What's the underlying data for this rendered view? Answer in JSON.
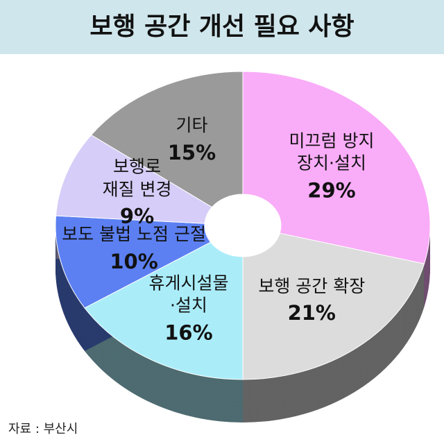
{
  "chart_data": {
    "type": "pie",
    "title": "보행 공간 개선 필요 사항",
    "categories": [
      "미끄럼 방지\n장치·설치",
      "보행 공간 확장",
      "휴게시설물\n·설치",
      "보도 불법 노점 근절",
      "보행로\n재질 변경",
      "기타"
    ],
    "values": [
      29,
      21,
      16,
      10,
      9,
      15
    ],
    "value_labels": [
      "29%",
      "21%",
      "16%",
      "10%",
      "9%",
      "15%"
    ],
    "colors": [
      "#f9acf8",
      "#dcdcdc",
      "#aaedf9",
      "#5c80f2",
      "#d6cdf8",
      "#9a9a9a"
    ],
    "source": "자료 : 부산시"
  }
}
